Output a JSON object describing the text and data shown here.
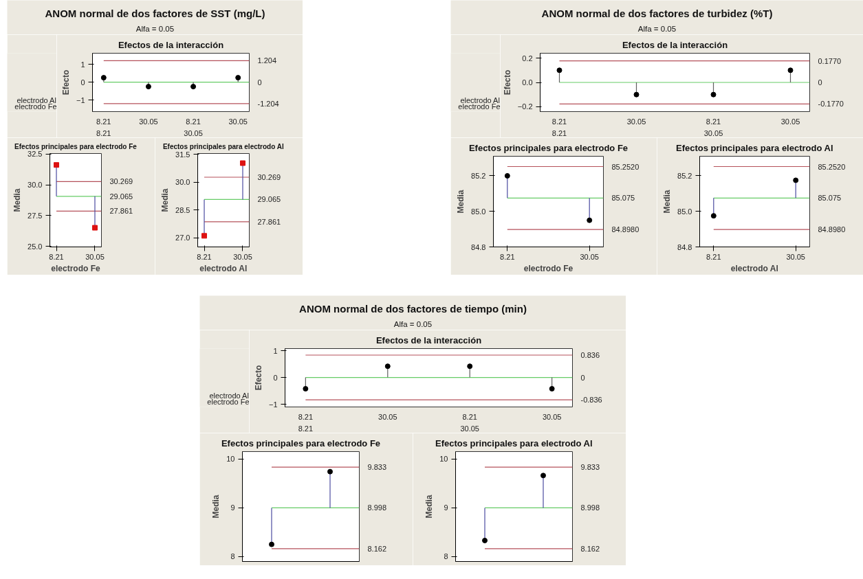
{
  "chart_data": [
    {
      "type": "other",
      "title": "ANOM normal de dos factores de SST (mg/L)",
      "subtitle": "Alfa = 0.05"
    },
    {
      "type": "lollipop",
      "title": "Efectos de la interacción",
      "ylabel": "Efecto",
      "categories": [
        "8.21",
        "30.05",
        "8.21",
        "30.05"
      ],
      "ylim": [
        -1.65,
        1.62
      ],
      "yticks": [
        -1,
        0,
        1
      ],
      "marker": "circle",
      "series": [
        {
          "color": "#606060",
          "colors": [
            "#000000",
            "#000000",
            "#000000",
            "#000000"
          ],
          "values": [
            0.25,
            -0.25,
            -0.25,
            0.25
          ]
        }
      ],
      "ref_lines": [
        {
          "axis": "y",
          "value": 1.204,
          "label": "1.204",
          "color": "#b5505a"
        },
        {
          "axis": "y",
          "value": 0,
          "label": "0",
          "color": "#66cc66"
        },
        {
          "axis": "y",
          "value": -1.204,
          "label": "-1.204",
          "color": "#b5505a"
        }
      ],
      "annotations": [
        "electrodo Al",
        "electrodo Fe",
        "8.21",
        "30.05"
      ]
    },
    {
      "type": "scatter",
      "title": "Efectos principales para electrodo Fe",
      "xlabel": "electrodo Fe",
      "ylabel": "Media",
      "categories": [
        "8.21",
        "30.05"
      ],
      "ylim": [
        24.95,
        32.55
      ],
      "yticks": [
        {
          "value": 25,
          "label": "25.0"
        },
        27.5,
        {
          "value": 30,
          "label": "30.0"
        },
        32.5
      ],
      "marker": "square",
      "series": [
        {
          "color": "#4b4ba0",
          "colors": [
            "#dd1111",
            "#dd1111"
          ],
          "values": [
            31.62,
            26.51
          ],
          "errors": [
            [
              29.065,
              31.62
            ],
            [
              26.51,
              29.065
            ]
          ]
        }
      ],
      "ref_lines": [
        {
          "axis": "y",
          "value": 30.269,
          "label": "30.269",
          "color": "#b5505a"
        },
        {
          "axis": "y",
          "value": 29.065,
          "label": "29.065",
          "color": "#66cc66"
        },
        {
          "axis": "y",
          "value": 27.861,
          "label": "27.861",
          "color": "#b5505a"
        }
      ]
    },
    {
      "type": "scatter",
      "title": "Efectos principales para electrodo Al",
      "xlabel": "electrodo Al",
      "ylabel": "Media",
      "categories": [
        "8.21",
        "30.05"
      ],
      "ylim": [
        26.5,
        31.55
      ],
      "yticks": [
        {
          "value": 27,
          "label": "27.0"
        },
        28.5,
        {
          "value": 30,
          "label": "30.0"
        },
        31.5
      ],
      "marker": "square",
      "series": [
        {
          "color": "#4b4ba0",
          "colors": [
            "#dd1111",
            "#dd1111"
          ],
          "values": [
            27.1,
            31.03
          ],
          "errors": [
            [
              27.1,
              29.065
            ],
            [
              29.065,
              31.03
            ]
          ]
        }
      ],
      "ref_lines": [
        {
          "axis": "y",
          "value": 30.269,
          "label": "30.269",
          "color": "#b5505a"
        },
        {
          "axis": "y",
          "value": 29.065,
          "label": "29.065",
          "color": "#66cc66"
        },
        {
          "axis": "y",
          "value": 27.861,
          "label": "27.861",
          "color": "#b5505a"
        }
      ]
    },
    {
      "type": "other",
      "title": "ANOM normal de dos factores de turbidez (%T)",
      "subtitle": "Alfa = 0.05"
    },
    {
      "type": "lollipop",
      "title": "Efectos de la interacción",
      "ylabel": "Efecto",
      "categories": [
        "8.21",
        "30.05",
        "8.21",
        "30.05"
      ],
      "ylim": [
        -0.24,
        0.24
      ],
      "yticks": [
        -0.2,
        {
          "value": 0,
          "label": "0.0"
        },
        0.2
      ],
      "marker": "circle",
      "series": [
        {
          "color": "#606060",
          "colors": [
            "#000000",
            "#000000",
            "#000000",
            "#000000"
          ],
          "values": [
            0.1,
            -0.1,
            -0.1,
            0.1
          ]
        }
      ],
      "ref_lines": [
        {
          "axis": "y",
          "value": 0.177,
          "label": "0.1770",
          "color": "#b5505a"
        },
        {
          "axis": "y",
          "value": 0,
          "label": "0",
          "color": "#66cc66"
        },
        {
          "axis": "y",
          "value": -0.177,
          "label": "-0.1770",
          "color": "#b5505a"
        }
      ],
      "annotations": [
        "electrodo Al",
        "electrodo Fe",
        "8.21",
        "30.05"
      ]
    },
    {
      "type": "scatter",
      "title": "Efectos principales para electrodo Fe",
      "xlabel": "electrodo Fe",
      "ylabel": "Media",
      "categories": [
        "8.21",
        "30.05"
      ],
      "ylim": [
        84.8,
        85.31
      ],
      "yticks": [
        84.8,
        {
          "value": 85,
          "label": "85.0"
        },
        85.2
      ],
      "marker": "circle",
      "series": [
        {
          "color": "#4b4ba0",
          "colors": [
            "#000000",
            "#000000"
          ],
          "values": [
            85.2,
            84.95
          ],
          "errors": [
            [
              85.075,
              85.2
            ],
            [
              84.95,
              85.075
            ]
          ]
        }
      ],
      "ref_lines": [
        {
          "axis": "y",
          "value": 85.252,
          "label": "85.2520",
          "color": "#b5505a"
        },
        {
          "axis": "y",
          "value": 85.075,
          "label": "85.075",
          "color": "#66cc66"
        },
        {
          "axis": "y",
          "value": 84.898,
          "label": "84.8980",
          "color": "#b5505a"
        }
      ]
    },
    {
      "type": "scatter",
      "title": "Efectos principales para electrodo Al",
      "xlabel": "electrodo Al",
      "ylabel": "Media",
      "categories": [
        "8.21",
        "30.05"
      ],
      "ylim": [
        84.8,
        85.31
      ],
      "yticks": [
        84.8,
        {
          "value": 85,
          "label": "85.0"
        },
        85.2
      ],
      "marker": "circle",
      "series": [
        {
          "color": "#4b4ba0",
          "colors": [
            "#000000",
            "#000000"
          ],
          "values": [
            84.975,
            85.175
          ],
          "errors": [
            [
              84.975,
              85.075
            ],
            [
              85.075,
              85.175
            ]
          ]
        }
      ],
      "ref_lines": [
        {
          "axis": "y",
          "value": 85.252,
          "label": "85.2520",
          "color": "#b5505a"
        },
        {
          "axis": "y",
          "value": 85.075,
          "label": "85.075",
          "color": "#66cc66"
        },
        {
          "axis": "y",
          "value": 84.898,
          "label": "84.8980",
          "color": "#b5505a"
        }
      ]
    },
    {
      "type": "other",
      "title": "ANOM normal de dos factores de tiempo (min)",
      "subtitle": "Alfa = 0.05"
    },
    {
      "type": "lollipop",
      "title": "Efectos de la interacción",
      "ylabel": "Efecto",
      "categories": [
        "8.21",
        "30.05",
        "8.21",
        "30.05"
      ],
      "ylim": [
        -1.1,
        1.08
      ],
      "yticks": [
        -1,
        0,
        1
      ],
      "marker": "circle",
      "series": [
        {
          "color": "#606060",
          "colors": [
            "#000000",
            "#000000",
            "#000000",
            "#000000"
          ],
          "values": [
            -0.42,
            0.42,
            0.42,
            -0.42
          ]
        }
      ],
      "ref_lines": [
        {
          "axis": "y",
          "value": 0.836,
          "label": "0.836",
          "color": "#b5505a"
        },
        {
          "axis": "y",
          "value": 0,
          "label": "0",
          "color": "#66cc66"
        },
        {
          "axis": "y",
          "value": -0.836,
          "label": "-0.836",
          "color": "#b5505a"
        }
      ],
      "annotations": [
        "electrodo Al",
        "electrodo Fe",
        "8.21",
        "30.05"
      ]
    },
    {
      "type": "scatter",
      "title": "Efectos principales para electrodo Fe",
      "ylabel": "Media",
      "categories": [
        null,
        null
      ],
      "ylim": [
        7.9,
        10.15
      ],
      "yticks": [
        8,
        9,
        10
      ],
      "marker": "circle",
      "tick_labels": "y",
      "series": [
        {
          "color": "#4b4ba0",
          "colors": [
            "#000000",
            "#000000"
          ],
          "values": [
            8.25,
            9.74
          ],
          "errors": [
            [
              8.25,
              8.998
            ],
            [
              8.998,
              9.74
            ]
          ]
        }
      ],
      "ref_lines": [
        {
          "axis": "y",
          "value": 9.833,
          "label": "9.833",
          "color": "#b5505a"
        },
        {
          "axis": "y",
          "value": 8.998,
          "label": "8.998",
          "color": "#66cc66"
        },
        {
          "axis": "y",
          "value": 8.162,
          "label": "8.162",
          "color": "#b5505a"
        }
      ]
    },
    {
      "type": "scatter",
      "title": "Efectos principales para electrodo Al",
      "ylabel": "Media",
      "categories": [
        null,
        null
      ],
      "ylim": [
        7.9,
        10.15
      ],
      "yticks": [
        8,
        9,
        10
      ],
      "marker": "circle",
      "tick_labels": "y",
      "series": [
        {
          "color": "#4b4ba0",
          "colors": [
            "#000000",
            "#000000"
          ],
          "values": [
            8.33,
            9.66
          ],
          "errors": [
            [
              8.33,
              8.998
            ],
            [
              8.998,
              9.66
            ]
          ]
        }
      ],
      "ref_lines": [
        {
          "axis": "y",
          "value": 9.833,
          "label": "9.833",
          "color": "#b5505a"
        },
        {
          "axis": "y",
          "value": 8.998,
          "label": "8.998",
          "color": "#66cc66"
        },
        {
          "axis": "y",
          "value": 8.162,
          "label": "8.162",
          "color": "#b5505a"
        }
      ]
    }
  ]
}
